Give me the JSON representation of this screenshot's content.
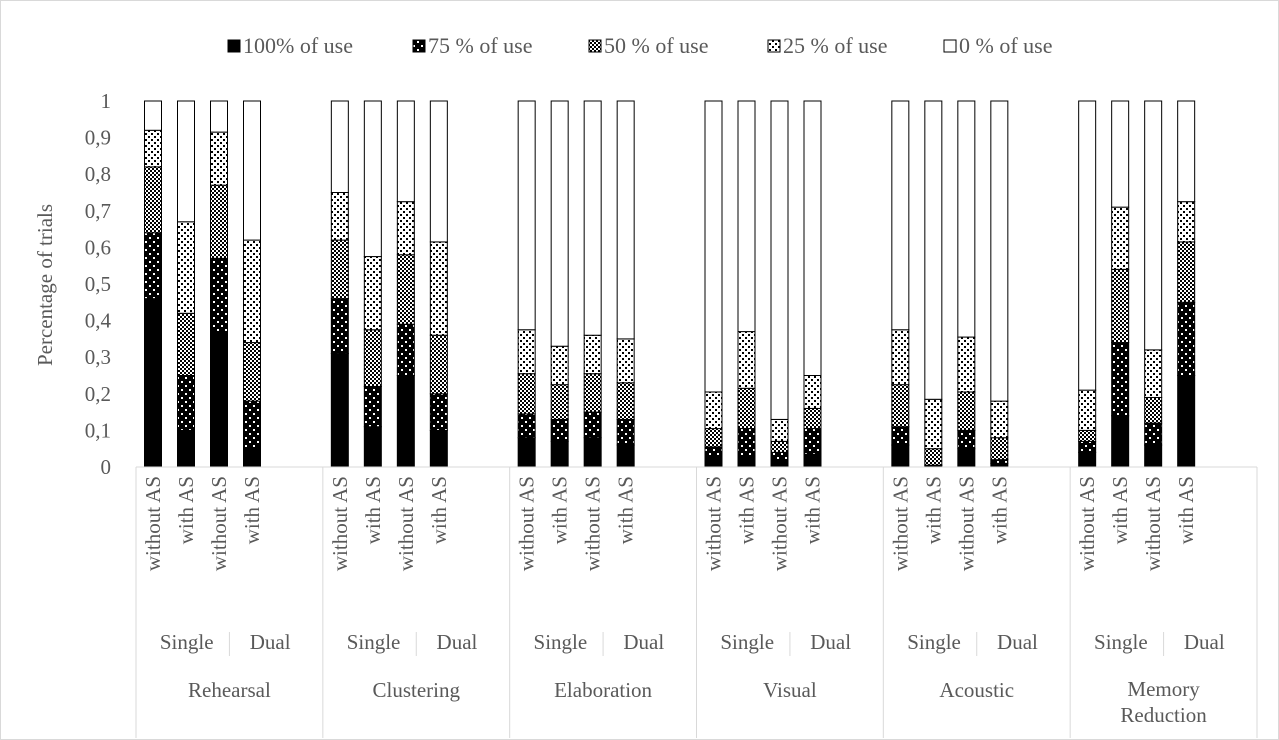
{
  "chart_data": {
    "type": "bar",
    "stacked": true,
    "ylabel": "Percentage of trials",
    "ylim": [
      0,
      1
    ],
    "yticks": [
      "0",
      "0,1",
      "0,2",
      "0,3",
      "0,4",
      "0,5",
      "0,6",
      "0,7",
      "0,8",
      "0,9",
      "1"
    ],
    "gridlines": false,
    "legend_position": "top",
    "series": [
      {
        "name": "100% of use",
        "pattern": "solid"
      },
      {
        "name": "75 % of use",
        "pattern": "dots-on-black"
      },
      {
        "name": "50 % of use",
        "pattern": "checker"
      },
      {
        "name": "25 % of use",
        "pattern": "dots-on-white"
      },
      {
        "name": "0 % of use",
        "pattern": "white"
      }
    ],
    "strategies": [
      {
        "name": "Rehearsal",
        "groups": [
          {
            "name": "Single",
            "bars": [
              {
                "label": "without AS",
                "values": [
                  0.46,
                  0.18,
                  0.18,
                  0.1,
                  0.08
                ]
              },
              {
                "label": "with AS",
                "values": [
                  0.1,
                  0.15,
                  0.17,
                  0.25,
                  0.33
                ]
              }
            ]
          },
          {
            "name": "Dual",
            "bars": [
              {
                "label": "without AS",
                "values": [
                  0.37,
                  0.2,
                  0.2,
                  0.145,
                  0.085
                ]
              },
              {
                "label": "with AS",
                "values": [
                  0.05,
                  0.13,
                  0.16,
                  0.28,
                  0.38
                ]
              }
            ]
          }
        ]
      },
      {
        "name": "Clustering",
        "groups": [
          {
            "name": "Single",
            "bars": [
              {
                "label": "without AS",
                "values": [
                  0.31,
                  0.15,
                  0.16,
                  0.13,
                  0.25
                ]
              },
              {
                "label": "with AS",
                "values": [
                  0.11,
                  0.11,
                  0.155,
                  0.2,
                  0.425
                ]
              }
            ]
          },
          {
            "name": "Dual",
            "bars": [
              {
                "label": "without AS",
                "values": [
                  0.25,
                  0.14,
                  0.19,
                  0.145,
                  0.275
                ]
              },
              {
                "label": "with AS",
                "values": [
                  0.1,
                  0.1,
                  0.16,
                  0.255,
                  0.385
                ]
              }
            ]
          }
        ]
      },
      {
        "name": "Elaboration",
        "groups": [
          {
            "name": "Single",
            "bars": [
              {
                "label": "without AS",
                "values": [
                  0.08,
                  0.065,
                  0.11,
                  0.12,
                  0.625
                ]
              },
              {
                "label": "with AS",
                "values": [
                  0.07,
                  0.06,
                  0.095,
                  0.105,
                  0.67
                ]
              }
            ]
          },
          {
            "name": "Dual",
            "bars": [
              {
                "label": "without AS",
                "values": [
                  0.08,
                  0.07,
                  0.105,
                  0.105,
                  0.64
                ]
              },
              {
                "label": "with AS",
                "values": [
                  0.06,
                  0.07,
                  0.1,
                  0.12,
                  0.65
                ]
              }
            ]
          }
        ]
      },
      {
        "name": "Visual",
        "groups": [
          {
            "name": "Single",
            "bars": [
              {
                "label": "without AS",
                "values": [
                  0.03,
                  0.025,
                  0.05,
                  0.1,
                  0.795
                ]
              },
              {
                "label": "with AS",
                "values": [
                  0.03,
                  0.075,
                  0.11,
                  0.155,
                  0.63
                ]
              }
            ]
          },
          {
            "name": "Dual",
            "bars": [
              {
                "label": "without AS",
                "values": [
                  0.02,
                  0.02,
                  0.03,
                  0.06,
                  0.87
                ]
              },
              {
                "label": "with AS",
                "values": [
                  0.035,
                  0.07,
                  0.055,
                  0.09,
                  0.75
                ]
              }
            ]
          }
        ]
      },
      {
        "name": "Acoustic",
        "groups": [
          {
            "name": "Single",
            "bars": [
              {
                "label": "without AS",
                "values": [
                  0.06,
                  0.05,
                  0.115,
                  0.15,
                  0.625
                ]
              },
              {
                "label": "with AS",
                "values": [
                  0.005,
                  0.0,
                  0.045,
                  0.135,
                  0.815
                ]
              }
            ]
          },
          {
            "name": "Dual",
            "bars": [
              {
                "label": "without AS",
                "values": [
                  0.05,
                  0.05,
                  0.105,
                  0.15,
                  0.645
                ]
              },
              {
                "label": "with AS",
                "values": [
                  0.01,
                  0.01,
                  0.06,
                  0.1,
                  0.82
                ]
              }
            ]
          }
        ]
      },
      {
        "name": "Memory Reduction",
        "groups": [
          {
            "name": "Single",
            "bars": [
              {
                "label": "without AS",
                "values": [
                  0.04,
                  0.03,
                  0.03,
                  0.11,
                  0.79
                ]
              },
              {
                "label": "with AS",
                "values": [
                  0.14,
                  0.2,
                  0.2,
                  0.17,
                  0.29
                ]
              }
            ]
          },
          {
            "name": "Dual",
            "bars": [
              {
                "label": "without AS",
                "values": [
                  0.06,
                  0.06,
                  0.07,
                  0.13,
                  0.68
                ]
              },
              {
                "label": "with AS",
                "values": [
                  0.25,
                  0.2,
                  0.165,
                  0.11,
                  0.275
                ]
              }
            ]
          }
        ]
      }
    ]
  }
}
